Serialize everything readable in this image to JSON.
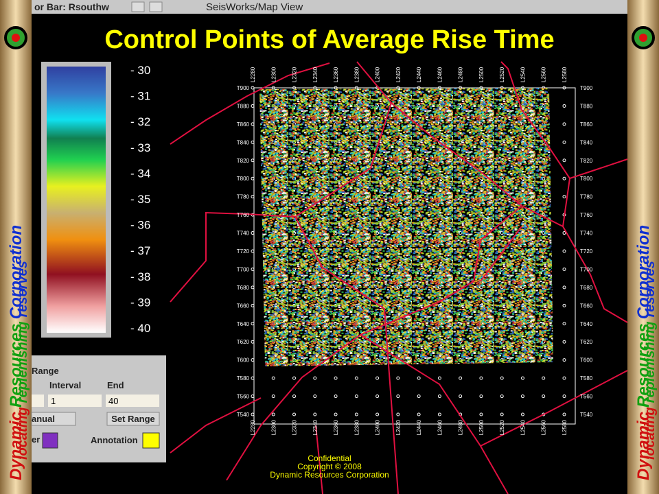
{
  "window": {
    "title_left": "or Bar: Rsouthw",
    "title": "SeisWorks/Map View"
  },
  "slide_title": "Control Points of Average Rise Time",
  "colorbar_labels": [
    "- 30",
    "- 31",
    "- 32",
    "- 33",
    "- 34",
    "- 35",
    "- 36",
    "- 37",
    "- 38",
    "- 39",
    "- 40"
  ],
  "panel": {
    "range": "Range",
    "interval_label": "Interval",
    "end_label": "End",
    "interval_value": "1",
    "end_value": "40",
    "mode": "anual",
    "set_range": "Set Range",
    "color_label": "er",
    "annotation": "Annotation"
  },
  "map": {
    "top_labels": [
      "L2280",
      "L2300",
      "L2320",
      "L2340",
      "L2360",
      "L2380",
      "L2400",
      "L2420",
      "L2440",
      "L2460",
      "L2480",
      "L2500",
      "L2520",
      "L2540",
      "L2560",
      "L2580"
    ],
    "right_labels": [
      "T900",
      "T880",
      "T860",
      "T840",
      "T820",
      "T800",
      "T780",
      "T760",
      "T740",
      "T720",
      "T700",
      "T680",
      "T660",
      "T640",
      "T620",
      "T600",
      "T580",
      "T560",
      "T540"
    ]
  },
  "footer": {
    "line1": "Confidential",
    "line2": "Copyright © 2008",
    "line3": "Dynamic Resources Corporation"
  },
  "banner": {
    "company": [
      "Dynamic",
      "Resources",
      "Corporation"
    ],
    "tagline": [
      "locating",
      "replenishing",
      "reserves"
    ]
  }
}
